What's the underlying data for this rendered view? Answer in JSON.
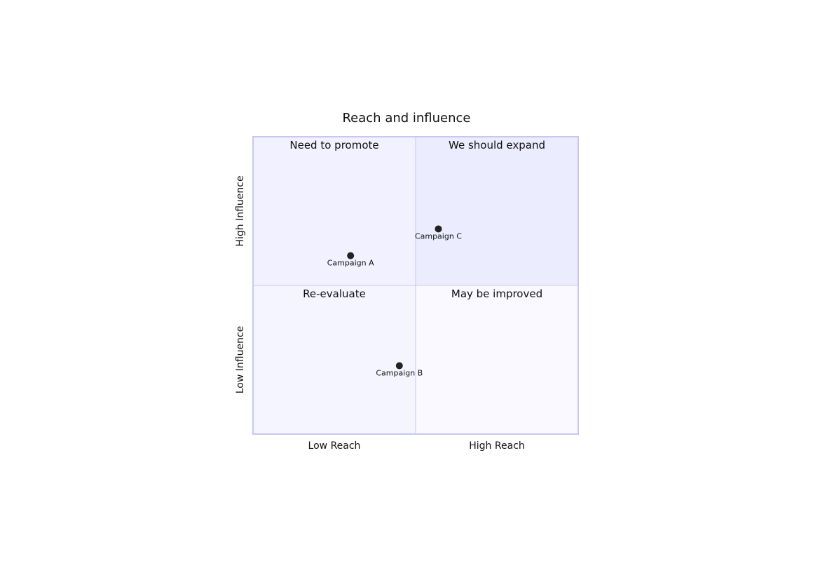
{
  "chart_data": {
    "type": "scatter",
    "title": "Reach and influence",
    "x_axis": {
      "low_label": "Low Reach",
      "high_label": "High Reach",
      "range": [
        0,
        1
      ]
    },
    "y_axis": {
      "low_label": "Low Influence",
      "high_label": "High Influence",
      "range": [
        0,
        1
      ]
    },
    "quadrants": {
      "top_left": "Need to promote",
      "top_right": "We should expand",
      "bottom_left": "Re-evaluate",
      "bottom_right": "May be improved"
    },
    "points": [
      {
        "label": "Campaign A",
        "x": 0.3,
        "y": 0.6
      },
      {
        "label": "Campaign B",
        "x": 0.45,
        "y": 0.23
      },
      {
        "label": "Campaign C",
        "x": 0.57,
        "y": 0.69
      }
    ],
    "colors": {
      "top_right_fill": "#ECECFF",
      "top_left_fill": "#F1F1FF",
      "bottom_left_fill": "#F5F5FF",
      "bottom_right_fill": "#F9F9FF",
      "border": "#C7C7F1",
      "point": "#222222"
    }
  }
}
